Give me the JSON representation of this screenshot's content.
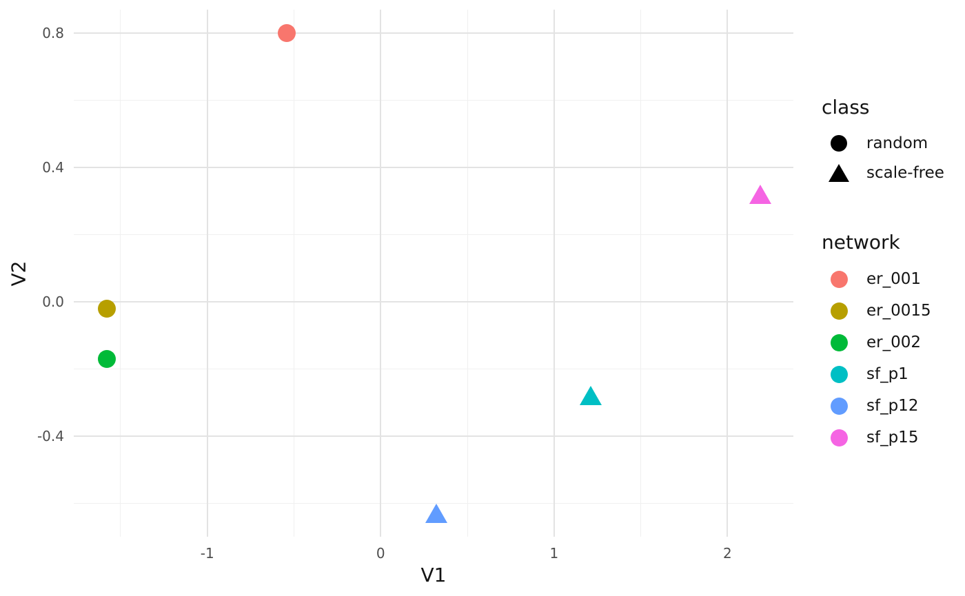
{
  "chart_data": {
    "type": "scatter",
    "xlabel": "V1",
    "ylabel": "V2",
    "xlim": [
      -1.77,
      2.38
    ],
    "ylim": [
      -0.7,
      0.87
    ],
    "x_major_ticks": [
      -1,
      0,
      1,
      2
    ],
    "x_tick_labels": [
      "-1",
      "0",
      "1",
      "2"
    ],
    "x_minor_ticks": [
      -1.5,
      -0.5,
      0.5,
      1.5
    ],
    "y_major_ticks": [
      -0.4,
      0.0,
      0.4,
      0.8
    ],
    "y_tick_labels": [
      "-0.4",
      "0.0",
      "0.4",
      "0.8"
    ],
    "y_minor_ticks": [
      -0.6,
      -0.2,
      0.2,
      0.6
    ],
    "grid": "on",
    "legend_position": "right",
    "points": [
      {
        "network": "er_001",
        "class": "random",
        "x": -0.54,
        "y": 0.8,
        "color": "#F8766D",
        "shape": "circle"
      },
      {
        "network": "er_0015",
        "class": "random",
        "x": -1.58,
        "y": -0.02,
        "color": "#B79F00",
        "shape": "circle"
      },
      {
        "network": "er_002",
        "class": "random",
        "x": -1.58,
        "y": -0.17,
        "color": "#00BA38",
        "shape": "circle"
      },
      {
        "network": "sf_p1",
        "class": "scale-free",
        "x": 1.21,
        "y": -0.28,
        "color": "#00BFC4",
        "shape": "triangle"
      },
      {
        "network": "sf_p12",
        "class": "scale-free",
        "x": 0.32,
        "y": -0.63,
        "color": "#619CFF",
        "shape": "triangle"
      },
      {
        "network": "sf_p15",
        "class": "scale-free",
        "x": 2.19,
        "y": 0.32,
        "color": "#F564E3",
        "shape": "triangle"
      }
    ]
  },
  "legends": {
    "class": {
      "title": "class",
      "items": [
        {
          "label": "random",
          "shape": "circle",
          "color": "#000000"
        },
        {
          "label": "scale-free",
          "shape": "triangle",
          "color": "#000000"
        }
      ]
    },
    "network": {
      "title": "network",
      "items": [
        {
          "label": "er_001",
          "shape": "circle",
          "color": "#F8766D"
        },
        {
          "label": "er_0015",
          "shape": "circle",
          "color": "#B79F00"
        },
        {
          "label": "er_002",
          "shape": "circle",
          "color": "#00BA38"
        },
        {
          "label": "sf_p1",
          "shape": "circle",
          "color": "#00BFC4"
        },
        {
          "label": "sf_p12",
          "shape": "circle",
          "color": "#619CFF"
        },
        {
          "label": "sf_p15",
          "shape": "circle",
          "color": "#F564E3"
        }
      ]
    }
  },
  "colors": {
    "background": "#FFFFFF",
    "grid_major": "#E3E3E3",
    "grid_minor": "#F0F0F0",
    "tick_label": "#4D4D4D",
    "text": "#141414"
  }
}
